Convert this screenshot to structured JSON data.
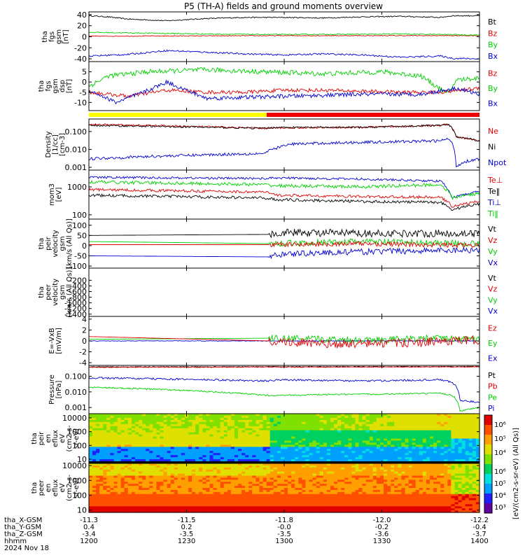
{
  "title": "P5 (TH-A) fields and ground moments overview",
  "date": "2024 Nov 18",
  "colors": {
    "black": "#000000",
    "red": "#e00000",
    "green": "#00d000",
    "blue": "#0000d0",
    "yellow": "#ffff00",
    "mode_red": "#ee0000"
  },
  "chart_data": [
    {
      "id": "fgs_mag",
      "type": "line",
      "ylabel": [
        "tha",
        "fgs",
        "gsm",
        "[nT]"
      ],
      "ylim": [
        -45,
        45
      ],
      "yticks": [
        -40,
        -20,
        0,
        20,
        40
      ],
      "legend": [
        {
          "label": "Bt",
          "color": "black"
        },
        {
          "label": "Bz",
          "color": "red"
        },
        {
          "label": "By",
          "color": "green"
        },
        {
          "label": "Bx",
          "color": "blue"
        }
      ],
      "series": [
        {
          "color": "black",
          "noise": 1,
          "x": [
            0,
            0.05,
            0.1,
            0.2,
            0.3,
            0.4,
            0.5,
            0.6,
            0.7,
            0.8,
            0.9,
            0.93,
            1
          ],
          "y": [
            38,
            36,
            32,
            29,
            33,
            35,
            35,
            34,
            36,
            37,
            35,
            38,
            38
          ]
        },
        {
          "color": "red",
          "noise": 0.7,
          "x": [
            0,
            0.5,
            1
          ],
          "y": [
            1,
            2,
            2
          ]
        },
        {
          "color": "green",
          "noise": 1,
          "x": [
            0,
            0.3,
            0.5,
            0.8,
            0.92,
            1
          ],
          "y": [
            8,
            5,
            4,
            5,
            4,
            3
          ]
        },
        {
          "color": "blue",
          "noise": 1.5,
          "x": [
            0,
            0.1,
            0.2,
            0.3,
            0.4,
            0.5,
            0.6,
            0.7,
            0.8,
            0.9,
            0.93,
            1
          ],
          "y": [
            -35,
            -32,
            -25,
            -28,
            -31,
            -33,
            -31,
            -33,
            -37,
            -35,
            -39,
            -40
          ]
        }
      ]
    },
    {
      "id": "fgs_mag_detail",
      "type": "line",
      "ylabel": [
        "tha",
        "fgs",
        "gsm",
        "dsp",
        "[nT]"
      ],
      "ylim": [
        -14,
        10
      ],
      "yticks": [
        -10,
        -5,
        0,
        5
      ],
      "legend": [
        {
          "label": "Bz",
          "color": "red"
        },
        {
          "label": "By",
          "color": "green"
        },
        {
          "label": "Bx",
          "color": "blue"
        }
      ],
      "series": [
        {
          "color": "green",
          "noise": 1.2,
          "x": [
            0,
            0.05,
            0.15,
            0.3,
            0.45,
            0.6,
            0.75,
            0.85,
            0.92,
            0.94,
            1
          ],
          "y": [
            -2,
            3,
            5,
            6,
            5,
            4,
            5,
            3,
            -6,
            1,
            2
          ]
        },
        {
          "color": "red",
          "noise": 0.9,
          "x": [
            0,
            0.1,
            0.2,
            0.3,
            0.4,
            0.5,
            0.6,
            0.8,
            0.9,
            1
          ],
          "y": [
            -5,
            -7,
            -4,
            -5,
            -5,
            -4,
            -4,
            -5,
            -5,
            -3
          ]
        },
        {
          "color": "blue",
          "noise": 1,
          "x": [
            0,
            0.07,
            0.14,
            0.2,
            0.3,
            0.5,
            0.7,
            0.85,
            0.94,
            1
          ],
          "y": [
            -4,
            -10,
            -5,
            0,
            -8,
            -7,
            -6,
            -6,
            -3,
            -6
          ]
        }
      ]
    },
    {
      "id": "density",
      "type": "line",
      "log": true,
      "ylabel": [
        "Density",
        "[1/cc]",
        "[cm-3]"
      ],
      "ylim": [
        0.0007,
        0.5
      ],
      "yticks": [
        0.001,
        0.01,
        0.1
      ],
      "yticklabels": [
        "0.001",
        "0.010",
        "0.100"
      ],
      "legend": [
        {
          "label": "Ne",
          "color": "red"
        },
        {
          "label": "Ni",
          "color": "black"
        },
        {
          "label": "Npot",
          "color": "blue"
        }
      ],
      "series": [
        {
          "color": "red",
          "noise": 0.05,
          "x": [
            0,
            0.45,
            0.48,
            0.7,
            0.9,
            0.92,
            0.94,
            1
          ],
          "y": [
            0.25,
            0.15,
            0.16,
            0.17,
            0.22,
            0.25,
            0.05,
            0.03
          ]
        },
        {
          "color": "black",
          "noise": 0.05,
          "x": [
            0,
            0.45,
            0.48,
            0.7,
            0.9,
            0.92,
            0.94,
            1
          ],
          "y": [
            0.22,
            0.15,
            0.17,
            0.17,
            0.22,
            0.24,
            0.05,
            0.03
          ]
        },
        {
          "color": "blue",
          "noise": 0.08,
          "x": [
            0,
            0.45,
            0.52,
            0.7,
            0.9,
            0.92,
            0.94,
            0.96,
            1
          ],
          "y": [
            0.003,
            0.006,
            0.02,
            0.025,
            0.03,
            0.04,
            0.001,
            0.002,
            0.003
          ]
        }
      ]
    },
    {
      "id": "temperature",
      "type": "line",
      "log": true,
      "ylabel": [
        "mom3",
        "[eV]"
      ],
      "ylim": [
        70,
        4000
      ],
      "yticks": [
        100,
        1000
      ],
      "yticklabels": [
        "100",
        "1000"
      ],
      "legend": [
        {
          "label": "Te⊥",
          "color": "red"
        },
        {
          "label": "Te‖",
          "color": "black"
        },
        {
          "label": "Ti⊥",
          "color": "blue"
        },
        {
          "label": "Ti‖",
          "color": "green"
        }
      ],
      "series": [
        {
          "color": "blue",
          "noise": 0.04,
          "x": [
            0,
            0.45,
            0.48,
            0.7,
            0.9,
            0.93,
            1
          ],
          "y": [
            2200,
            2000,
            2100,
            1900,
            1600,
            400,
            700
          ]
        },
        {
          "color": "green",
          "noise": 0.06,
          "x": [
            0,
            0.45,
            0.48,
            0.7,
            0.9,
            0.93,
            1
          ],
          "y": [
            1500,
            1200,
            1100,
            1000,
            1200,
            400,
            600
          ]
        },
        {
          "color": "red",
          "noise": 0.05,
          "x": [
            0,
            0.45,
            0.48,
            0.7,
            0.9,
            0.93,
            1
          ],
          "y": [
            800,
            650,
            500,
            450,
            420,
            200,
            300
          ]
        },
        {
          "color": "black",
          "noise": 0.05,
          "x": [
            0,
            0.45,
            0.48,
            0.7,
            0.9,
            0.93,
            1
          ],
          "y": [
            500,
            400,
            350,
            300,
            280,
            150,
            250
          ]
        }
      ]
    },
    {
      "id": "peir_velocity",
      "type": "line",
      "ylabel": [
        "tha",
        "peir",
        "velocity",
        "gsm",
        "[km/s (All Qs)]"
      ],
      "ylim": [
        -110,
        130
      ],
      "yticks": [
        -100,
        -50,
        0,
        50,
        100
      ],
      "legend": [
        {
          "label": "Vt",
          "color": "black"
        },
        {
          "label": "Vz",
          "color": "red"
        },
        {
          "label": "Vy",
          "color": "green"
        },
        {
          "label": "Vx",
          "color": "blue"
        }
      ],
      "series": [
        {
          "color": "black",
          "noise": 18,
          "start": 0.46,
          "pre": 50,
          "x": [
            0,
            0.46,
            0.5,
            0.7,
            1
          ],
          "y": [
            50,
            55,
            65,
            60,
            60
          ]
        },
        {
          "color": "green",
          "noise": 15,
          "start": 0.46,
          "pre": 20,
          "x": [
            0,
            0.46,
            0.7,
            1
          ],
          "y": [
            20,
            10,
            20,
            10
          ]
        },
        {
          "color": "red",
          "noise": 12,
          "start": 0.46,
          "pre": 5,
          "x": [
            0,
            0.46,
            0.7,
            1
          ],
          "y": [
            5,
            5,
            10,
            0
          ]
        },
        {
          "color": "blue",
          "noise": 15,
          "start": 0.46,
          "pre": -50,
          "x": [
            0,
            0.46,
            0.5,
            0.7,
            1
          ],
          "y": [
            -50,
            -55,
            -40,
            -30,
            -20
          ]
        }
      ]
    },
    {
      "id": "peer_velocity",
      "type": "line",
      "ylabel": [
        "tha",
        "peer",
        "velocity",
        "gsm",
        "[km/s (All Qs)]"
      ],
      "ylim": [
        -1480,
        230
      ],
      "yticks": [
        -1400,
        -1200,
        -1000,
        -800,
        -600,
        -400,
        -200
      ],
      "legend": [
        {
          "label": "Vt",
          "color": "black"
        },
        {
          "label": "Vz",
          "color": "red"
        },
        {
          "label": "Vy",
          "color": "green"
        },
        {
          "label": "Vx",
          "color": "blue"
        }
      ],
      "series": []
    },
    {
      "id": "e_field",
      "type": "line",
      "ylabel": [
        "E=-VxB",
        "[mV/m]"
      ],
      "ylim": [
        -4.5,
        4.5
      ],
      "yticks": [
        -4,
        -2,
        0,
        2,
        4
      ],
      "legend": [
        {
          "label": "Ez",
          "color": "red"
        },
        {
          "label": "Ey",
          "color": "green"
        },
        {
          "label": "Ex",
          "color": "blue"
        }
      ],
      "series": [
        {
          "color": "blue",
          "noise": 0.05,
          "x": [
            0,
            0.46,
            1
          ],
          "y": [
            0,
            0,
            0
          ]
        },
        {
          "color": "green",
          "noise": 0.6,
          "start": 0.46,
          "pre": 0.3,
          "x": [
            0,
            0.46,
            0.7,
            0.9,
            1
          ],
          "y": [
            0.3,
            0.5,
            0.2,
            0.5,
            0.2
          ]
        },
        {
          "color": "red",
          "noise": 0.8,
          "start": 0.46,
          "pre": 1.2,
          "x": [
            0,
            0.46,
            0.6,
            0.8,
            1
          ],
          "y": [
            0.8,
            0,
            -0.6,
            -0.4,
            0.2
          ]
        }
      ]
    },
    {
      "id": "pressure",
      "type": "line",
      "log": true,
      "ylabel": [
        "Pressure",
        "[nPa]"
      ],
      "ylim": [
        0.0004,
        0.5
      ],
      "yticks": [
        0.001,
        0.01,
        0.1
      ],
      "yticklabels": [
        "0.001",
        "0.010",
        "0.100"
      ],
      "legend": [
        {
          "label": "Pt",
          "color": "black"
        },
        {
          "label": "Pb",
          "color": "red"
        },
        {
          "label": "Pe",
          "color": "green"
        },
        {
          "label": "Pi",
          "color": "blue"
        }
      ],
      "series": [
        {
          "color": "black",
          "noise": 0.02,
          "x": [
            0,
            1
          ],
          "y": [
            0.4,
            0.42
          ]
        },
        {
          "color": "red",
          "noise": 0.02,
          "x": [
            0,
            1
          ],
          "y": [
            0.38,
            0.4
          ]
        },
        {
          "color": "blue",
          "noise": 0.06,
          "x": [
            0,
            0.45,
            0.5,
            0.7,
            0.9,
            0.93,
            0.95,
            1
          ],
          "y": [
            0.08,
            0.05,
            0.06,
            0.05,
            0.06,
            0.04,
            0.003,
            0.002
          ]
        },
        {
          "color": "green",
          "noise": 0.05,
          "x": [
            0,
            0.45,
            0.7,
            0.9,
            0.93,
            0.95,
            1
          ],
          "y": [
            0.02,
            0.006,
            0.007,
            0.008,
            0.006,
            0.0006,
            0.001
          ]
        }
      ]
    },
    {
      "id": "peir_spectrogram",
      "type": "heatmap",
      "log": true,
      "ylabel": [
        "tha",
        "peir",
        "en",
        "eflux",
        "eV",
        "(cm2-s-",
        "sr-eV)"
      ],
      "ylim": [
        5,
        20000
      ],
      "yticks": [
        10,
        100,
        1000,
        10000
      ],
      "yticklabels": [
        "10",
        "100",
        "1000",
        "10000"
      ]
    },
    {
      "id": "peer_spectrogram",
      "type": "heatmap",
      "log": true,
      "ylabel": [
        "tha",
        "peer",
        "en",
        "eflux",
        "eV",
        "(cm2-s-",
        "sr-eV)"
      ],
      "ylim": [
        7,
        14000
      ],
      "yticks": [
        10,
        100,
        1000,
        10000
      ],
      "yticklabels": [
        "10",
        "100",
        "1000",
        "10000"
      ]
    }
  ],
  "colorbar": {
    "upper_ticks": [
      "10⁴",
      "10⁵",
      "10⁶"
    ],
    "lower_ticks": [
      "10³",
      "10⁴",
      "10⁵",
      "10⁶"
    ],
    "label": "[eV/(cm2-s-sr-eV) (All Qs)]"
  },
  "x_axis": {
    "ticks": [
      {
        "hhmm": "1200",
        "x": "-11.3",
        "y": "0.4",
        "z": "-3.4"
      },
      {
        "hhmm": "1230",
        "x": "-11.5",
        "y": "0.2",
        "z": "-3.5"
      },
      {
        "hhmm": "1300",
        "x": "-11.8",
        "y": "-0.0",
        "z": "-3.5"
      },
      {
        "hhmm": "1330",
        "x": "-12.0",
        "y": "-0.2",
        "z": "-3.6"
      },
      {
        "hhmm": "1400",
        "x": "-12.2",
        "y": "-0.4",
        "z": "-3.7"
      }
    ],
    "row_labels": [
      "tha_X-GSM",
      "tha_Y-GSM",
      "tha_Z-GSM",
      "hhmm"
    ]
  }
}
